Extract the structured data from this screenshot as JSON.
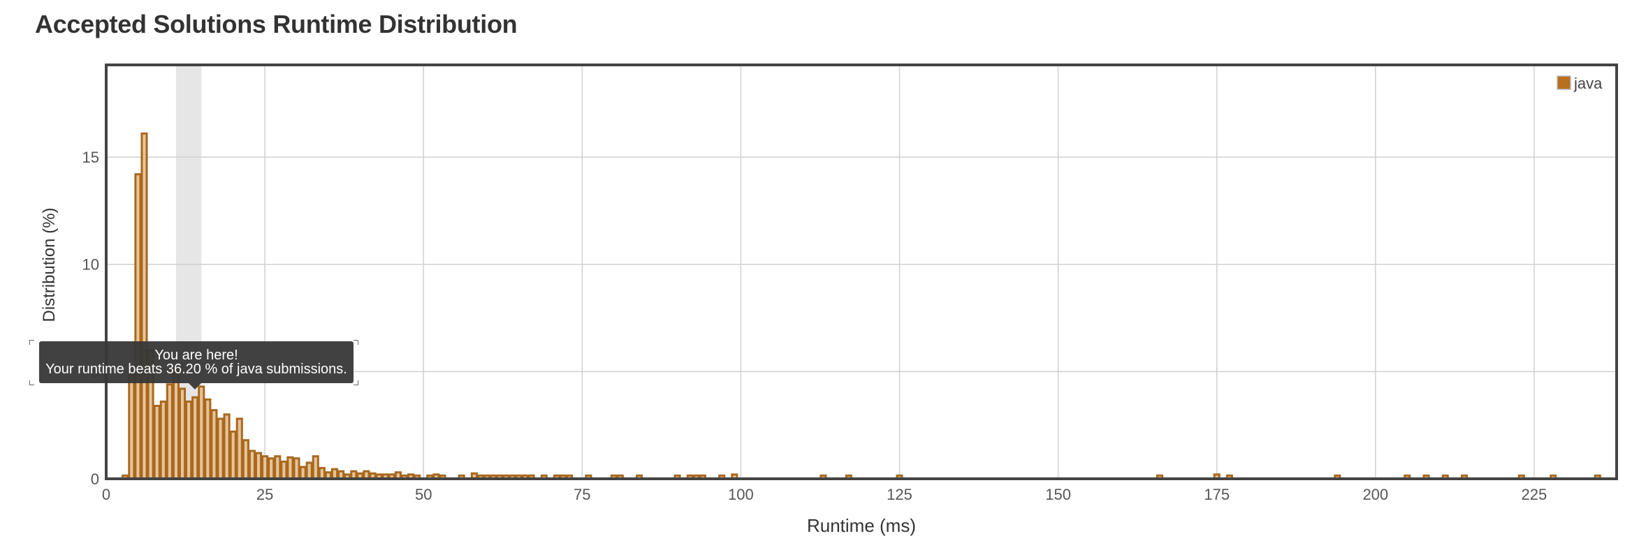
{
  "page": {
    "title": "Accepted Solutions Runtime Distribution"
  },
  "tooltip": {
    "line1": "You are here!",
    "line2": "Your runtime beats 36.20 % of java submissions."
  },
  "colors": {
    "bar_fill": "#e8c497",
    "bar_stroke": "#a8681f",
    "legend_swatch": "#b8701f",
    "highlight": "#e6e6e6",
    "grid": "#d0d0d0",
    "frame": "#444444"
  },
  "chart_data": {
    "type": "bar",
    "title": "Accepted Solutions Runtime Distribution",
    "xlabel": "Runtime (ms)",
    "ylabel": "Distribution (%)",
    "xlim": [
      0,
      238
    ],
    "ylim": [
      0,
      19.3
    ],
    "xticks": [
      0,
      25,
      50,
      75,
      100,
      125,
      150,
      175,
      200,
      225
    ],
    "yticks": [
      0,
      5,
      10,
      15
    ],
    "grid": true,
    "legend_position": "top-right",
    "highlight_range": [
      11,
      15
    ],
    "series": [
      {
        "name": "java",
        "x": [
          3,
          4,
          5,
          6,
          7,
          8,
          9,
          10,
          11,
          12,
          13,
          14,
          15,
          16,
          17,
          18,
          19,
          20,
          21,
          22,
          23,
          24,
          25,
          26,
          27,
          28,
          29,
          30,
          31,
          32,
          33,
          34,
          35,
          36,
          37,
          38,
          39,
          40,
          41,
          42,
          43,
          44,
          45,
          46,
          47,
          48,
          49,
          51,
          52,
          53,
          56,
          58,
          59,
          60,
          61,
          62,
          63,
          64,
          65,
          66,
          67,
          69,
          71,
          72,
          73,
          76,
          80,
          81,
          84,
          90,
          92,
          93,
          94,
          97,
          99,
          113,
          117,
          125,
          166,
          175,
          177,
          194,
          205,
          208,
          211,
          214,
          223,
          228,
          235
        ],
        "values": [
          0.15,
          5.0,
          14.2,
          16.1,
          6.0,
          3.4,
          3.6,
          4.4,
          5.2,
          4.2,
          3.6,
          3.8,
          4.3,
          3.7,
          3.2,
          2.8,
          3.0,
          2.2,
          2.8,
          1.8,
          1.3,
          1.2,
          1.05,
          0.95,
          1.05,
          0.8,
          1.0,
          0.95,
          0.55,
          0.75,
          1.05,
          0.5,
          0.3,
          0.45,
          0.35,
          0.2,
          0.35,
          0.25,
          0.35,
          0.25,
          0.2,
          0.2,
          0.2,
          0.3,
          0.15,
          0.2,
          0.15,
          0.15,
          0.2,
          0.15,
          0.15,
          0.25,
          0.15,
          0.15,
          0.15,
          0.15,
          0.15,
          0.15,
          0.15,
          0.15,
          0.15,
          0.15,
          0.15,
          0.15,
          0.15,
          0.15,
          0.15,
          0.15,
          0.15,
          0.15,
          0.15,
          0.15,
          0.15,
          0.15,
          0.2,
          0.15,
          0.15,
          0.15,
          0.15,
          0.2,
          0.15,
          0.15,
          0.15,
          0.15,
          0.15,
          0.15,
          0.15,
          0.15,
          0.15
        ]
      }
    ]
  }
}
